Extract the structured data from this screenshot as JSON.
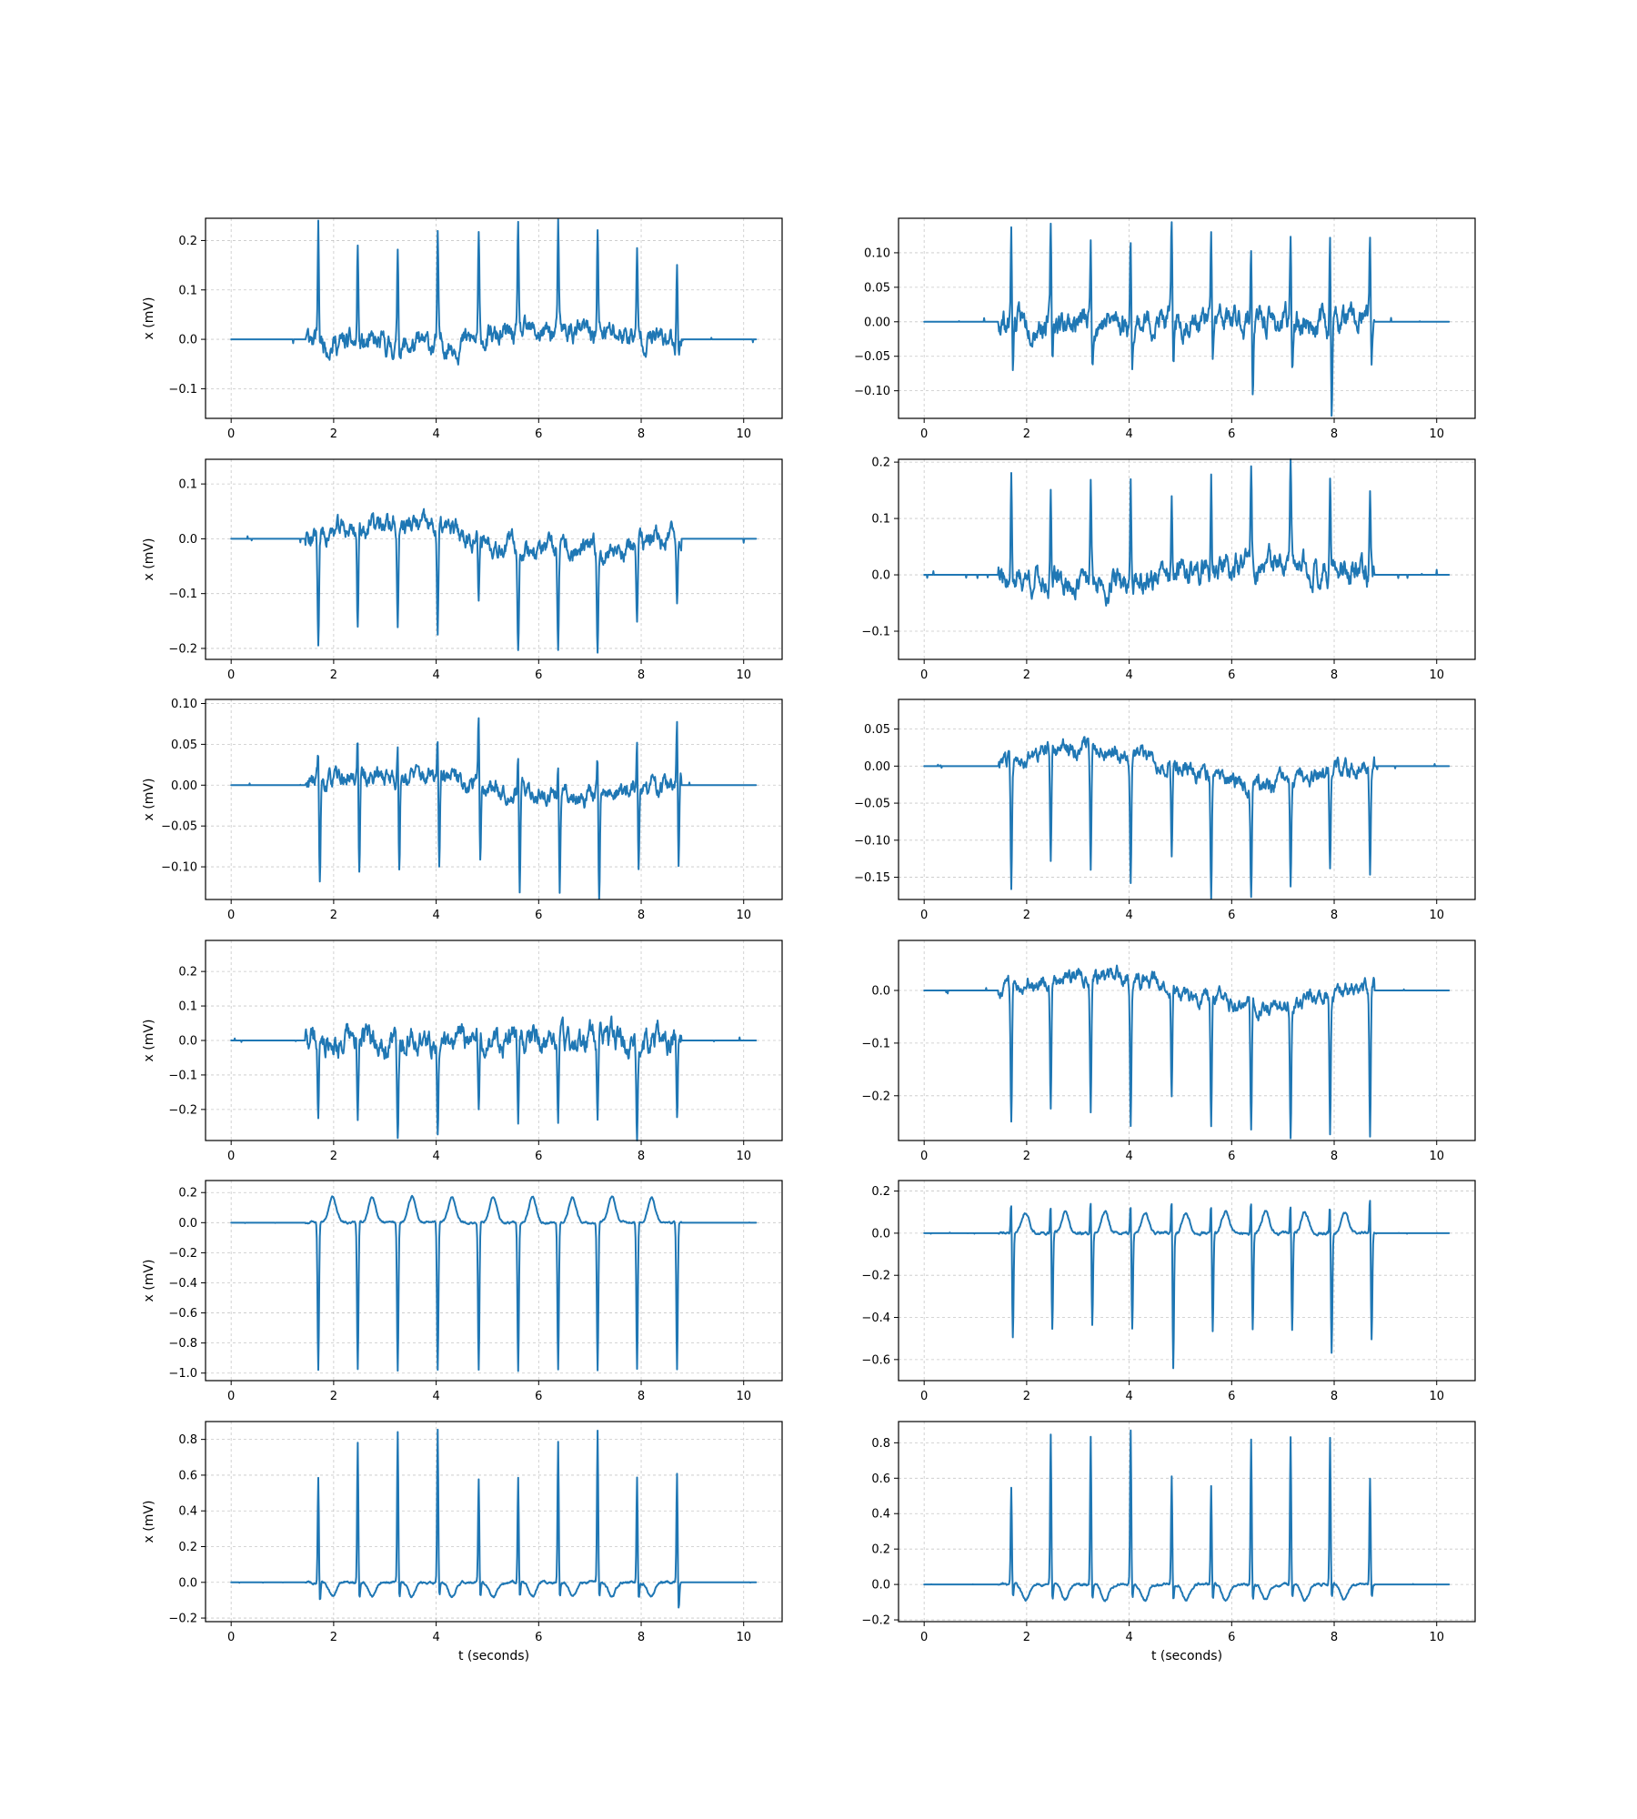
{
  "figure": {
    "layout": "6 rows x 2 columns of ECG line plots",
    "line_color": "#1f77b4",
    "background": "#ffffff"
  },
  "chart_data": [
    {
      "type": "line",
      "panel": "r1c1",
      "xlabel": "",
      "ylabel": "x (mV)",
      "xlim": [
        -0.5,
        10.75
      ],
      "ylim": [
        -0.16,
        0.245
      ],
      "xticks": [
        0,
        2,
        4,
        6,
        8,
        10
      ],
      "xtick_labels": [
        "0",
        "2",
        "4",
        "6",
        "8",
        "10"
      ],
      "yticks": [
        -0.1,
        0.0,
        0.1,
        0.2
      ],
      "ytick_labels": [
        "−0.1",
        "0.0",
        "0.1",
        "0.2"
      ],
      "grid": true,
      "x_range": [
        0,
        10.24
      ],
      "active_start": 1.45,
      "active_end": 8.78,
      "peak_times": [
        1.7,
        2.47,
        3.25,
        4.03,
        4.83,
        5.6,
        6.38,
        7.15,
        7.92,
        8.7
      ],
      "peak_values": [
        0.23,
        0.205,
        0.205,
        0.21,
        0.2,
        0.215,
        0.205,
        0.205,
        0.16,
        0.17
      ],
      "noise": 0.03,
      "drift": -0.015,
      "seed": 11
    },
    {
      "type": "line",
      "panel": "r1c2",
      "xlabel": "",
      "ylabel": "",
      "xlim": [
        -0.5,
        10.75
      ],
      "ylim": [
        -0.14,
        0.15
      ],
      "xticks": [
        0,
        2,
        4,
        6,
        8,
        10
      ],
      "xtick_labels": [
        "0",
        "2",
        "4",
        "6",
        "8",
        "10"
      ],
      "yticks": [
        -0.1,
        -0.05,
        0.0,
        0.05,
        0.1
      ],
      "ytick_labels": [
        "−0.10",
        "−0.05",
        "0.00",
        "0.05",
        "0.10"
      ],
      "grid": true,
      "x_range": [
        0,
        10.24
      ],
      "active_start": 1.45,
      "active_end": 8.78,
      "peak_times": [
        1.7,
        2.47,
        3.25,
        4.03,
        4.83,
        5.6,
        6.38,
        7.15,
        7.92,
        8.7
      ],
      "peak_values": [
        0.135,
        0.13,
        0.12,
        0.12,
        0.13,
        0.135,
        0.13,
        0.13,
        0.125,
        0.135
      ],
      "trough_values": [
        -0.06,
        -0.06,
        -0.055,
        -0.06,
        -0.065,
        -0.07,
        -0.1,
        -0.07,
        -0.13,
        -0.065
      ],
      "noise": 0.025,
      "drift": 0,
      "seed": 23
    },
    {
      "type": "line",
      "panel": "r2c1",
      "xlabel": "",
      "ylabel": "x (mV)",
      "xlim": [
        -0.5,
        10.75
      ],
      "ylim": [
        -0.22,
        0.145
      ],
      "xticks": [
        0,
        2,
        4,
        6,
        8,
        10
      ],
      "xtick_labels": [
        "0",
        "2",
        "4",
        "6",
        "8",
        "10"
      ],
      "yticks": [
        -0.2,
        -0.1,
        0.0,
        0.1
      ],
      "ytick_labels": [
        "−0.2",
        "−0.1",
        "0.0",
        "0.1"
      ],
      "grid": true,
      "x_range": [
        0,
        10.24
      ],
      "active_start": 1.45,
      "active_end": 8.78,
      "peak_times": [
        1.7,
        2.47,
        3.25,
        4.03,
        4.83,
        5.6,
        6.38,
        7.15,
        7.92,
        8.7
      ],
      "trough_values": [
        -0.2,
        -0.185,
        -0.19,
        -0.195,
        -0.135,
        -0.19,
        -0.185,
        -0.19,
        -0.15,
        -0.11
      ],
      "noise": 0.025,
      "drift": 0.025,
      "seed": 37
    },
    {
      "type": "line",
      "panel": "r2c2",
      "xlabel": "",
      "ylabel": "",
      "xlim": [
        -0.5,
        10.75
      ],
      "ylim": [
        -0.15,
        0.205
      ],
      "xticks": [
        0,
        2,
        4,
        6,
        8,
        10
      ],
      "xtick_labels": [
        "0",
        "2",
        "4",
        "6",
        "8",
        "10"
      ],
      "yticks": [
        -0.1,
        0.0,
        0.1,
        0.2
      ],
      "ytick_labels": [
        "−0.1",
        "0.0",
        "0.1",
        "0.2"
      ],
      "grid": true,
      "x_range": [
        0,
        10.24
      ],
      "active_start": 1.45,
      "active_end": 8.78,
      "peak_times": [
        1.7,
        2.47,
        3.25,
        4.03,
        4.83,
        5.6,
        6.38,
        7.15,
        7.92,
        8.7
      ],
      "peak_values": [
        0.19,
        0.17,
        0.17,
        0.18,
        0.15,
        0.18,
        0.17,
        0.18,
        0.16,
        0.135
      ],
      "noise": 0.03,
      "drift": -0.015,
      "seed": 41
    },
    {
      "type": "line",
      "panel": "r3c1",
      "xlabel": "",
      "ylabel": "x (mV)",
      "xlim": [
        -0.5,
        10.75
      ],
      "ylim": [
        -0.14,
        0.105
      ],
      "xticks": [
        0,
        2,
        4,
        6,
        8,
        10
      ],
      "xtick_labels": [
        "0",
        "2",
        "4",
        "6",
        "8",
        "10"
      ],
      "yticks": [
        -0.1,
        -0.05,
        0.0,
        0.05,
        0.1
      ],
      "ytick_labels": [
        "−0.10",
        "−0.05",
        "0.00",
        "0.05",
        "0.10"
      ],
      "grid": true,
      "x_range": [
        0,
        10.24
      ],
      "active_start": 1.45,
      "active_end": 8.78,
      "peak_times": [
        1.7,
        2.47,
        3.25,
        4.03,
        4.83,
        5.6,
        6.38,
        7.15,
        7.92,
        8.7
      ],
      "peak_values": [
        0.05,
        0.06,
        0.05,
        0.05,
        0.09,
        0.055,
        0.055,
        0.05,
        0.06,
        0.08
      ],
      "trough_values": [
        -0.125,
        -0.12,
        -0.125,
        -0.125,
        -0.09,
        -0.12,
        -0.12,
        -0.125,
        -0.1,
        -0.1
      ],
      "noise": 0.015,
      "drift": 0.012,
      "seed": 53
    },
    {
      "type": "line",
      "panel": "r3c2",
      "xlabel": "",
      "ylabel": "",
      "xlim": [
        -0.5,
        10.75
      ],
      "ylim": [
        -0.18,
        0.09
      ],
      "xticks": [
        0,
        2,
        4,
        6,
        8,
        10
      ],
      "xtick_labels": [
        "0",
        "2",
        "4",
        "6",
        "8",
        "10"
      ],
      "yticks": [
        -0.15,
        -0.1,
        -0.05,
        0.0,
        0.05
      ],
      "ytick_labels": [
        "−0.15",
        "−0.10",
        "−0.05",
        "0.00",
        "0.05"
      ],
      "grid": true,
      "x_range": [
        0,
        10.24
      ],
      "active_start": 1.45,
      "active_end": 8.78,
      "peak_times": [
        1.7,
        2.47,
        3.25,
        4.03,
        4.83,
        5.6,
        6.38,
        7.15,
        7.92,
        8.7
      ],
      "trough_values": [
        -0.17,
        -0.15,
        -0.15,
        -0.155,
        -0.13,
        -0.165,
        -0.15,
        -0.14,
        -0.14,
        -0.145
      ],
      "noise": 0.015,
      "drift": 0.025,
      "seed": 67
    },
    {
      "type": "line",
      "panel": "r4c1",
      "xlabel": "",
      "ylabel": "x (mV)",
      "xlim": [
        -0.5,
        10.75
      ],
      "ylim": [
        -0.29,
        0.29
      ],
      "xticks": [
        0,
        2,
        4,
        6,
        8,
        10
      ],
      "xtick_labels": [
        "0",
        "2",
        "4",
        "6",
        "8",
        "10"
      ],
      "yticks": [
        -0.2,
        -0.1,
        0.0,
        0.1,
        0.2
      ],
      "ytick_labels": [
        "−0.2",
        "−0.1",
        "0.0",
        "0.1",
        "0.2"
      ],
      "grid": true,
      "x_range": [
        0,
        10.24
      ],
      "active_start": 1.45,
      "active_end": 8.78,
      "peak_times": [
        1.7,
        2.47,
        3.25,
        4.03,
        4.83,
        5.6,
        6.38,
        7.15,
        7.92,
        8.7
      ],
      "trough_values": [
        -0.26,
        -0.24,
        -0.25,
        -0.25,
        -0.22,
        -0.25,
        -0.24,
        -0.25,
        -0.25,
        -0.26
      ],
      "noise": 0.05,
      "drift": 0,
      "seed": 79
    },
    {
      "type": "line",
      "panel": "r4c2",
      "xlabel": "",
      "ylabel": "",
      "xlim": [
        -0.5,
        10.75
      ],
      "ylim": [
        -0.285,
        0.095
      ],
      "xticks": [
        0,
        2,
        4,
        6,
        8,
        10
      ],
      "xtick_labels": [
        "0",
        "2",
        "4",
        "6",
        "8",
        "10"
      ],
      "yticks": [
        -0.2,
        -0.1,
        0.0
      ],
      "ytick_labels": [
        "−0.2",
        "−0.1",
        "0.0"
      ],
      "grid": true,
      "x_range": [
        0,
        10.24
      ],
      "active_start": 1.45,
      "active_end": 8.78,
      "peak_times": [
        1.7,
        2.47,
        3.25,
        4.03,
        4.83,
        5.6,
        6.38,
        7.15,
        7.92,
        8.7
      ],
      "trough_values": [
        -0.26,
        -0.245,
        -0.25,
        -0.26,
        -0.2,
        -0.255,
        -0.245,
        -0.255,
        -0.265,
        -0.27
      ],
      "noise": 0.02,
      "drift": 0.03,
      "seed": 83
    },
    {
      "type": "line",
      "panel": "r5c1",
      "xlabel": "",
      "ylabel": "x (mV)",
      "xlim": [
        -0.5,
        10.75
      ],
      "ylim": [
        -1.05,
        0.28
      ],
      "xticks": [
        0,
        2,
        4,
        6,
        8,
        10
      ],
      "xtick_labels": [
        "0",
        "2",
        "4",
        "6",
        "8",
        "10"
      ],
      "yticks": [
        -1.0,
        -0.8,
        -0.6,
        -0.4,
        -0.2,
        0.0,
        0.2
      ],
      "ytick_labels": [
        "−1.0",
        "−0.8",
        "−0.6",
        "−0.4",
        "−0.2",
        "0.0",
        "0.2"
      ],
      "grid": true,
      "x_range": [
        0,
        10.24
      ],
      "active_start": 1.45,
      "active_end": 8.78,
      "peak_times": [
        1.7,
        2.47,
        3.25,
        4.03,
        4.83,
        5.6,
        6.38,
        7.15,
        7.92,
        8.7
      ],
      "trough_values": [
        -0.98,
        -0.98,
        -0.98,
        -0.98,
        -0.98,
        -0.98,
        -0.98,
        -0.98,
        -0.98,
        -0.98
      ],
      "twave": 0.17,
      "noise": 0.01,
      "drift": 0,
      "seed": 97
    },
    {
      "type": "line",
      "panel": "r5c2",
      "xlabel": "",
      "ylabel": "",
      "xlim": [
        -0.5,
        10.75
      ],
      "ylim": [
        -0.7,
        0.25
      ],
      "xticks": [
        0,
        2,
        4,
        6,
        8,
        10
      ],
      "xtick_labels": [
        "0",
        "2",
        "4",
        "6",
        "8",
        "10"
      ],
      "yticks": [
        -0.6,
        -0.4,
        -0.2,
        0.0,
        0.2
      ],
      "ytick_labels": [
        "−0.6",
        "−0.4",
        "−0.2",
        "0.0",
        "0.2"
      ],
      "grid": true,
      "x_range": [
        0,
        10.24
      ],
      "active_start": 1.45,
      "active_end": 8.78,
      "peak_times": [
        1.7,
        2.47,
        3.25,
        4.03,
        4.83,
        5.6,
        6.38,
        7.15,
        7.92,
        8.7
      ],
      "peak_values": [
        0.18,
        0.17,
        0.18,
        0.17,
        0.2,
        0.17,
        0.18,
        0.17,
        0.17,
        0.21
      ],
      "trough_values": [
        -0.5,
        -0.46,
        -0.45,
        -0.46,
        -0.65,
        -0.47,
        -0.46,
        -0.46,
        -0.58,
        -0.52
      ],
      "twave": 0.1,
      "noise": 0.01,
      "drift": 0,
      "seed": 101
    },
    {
      "type": "line",
      "panel": "r6c1",
      "xlabel": "t (seconds)",
      "ylabel": "x (mV)",
      "xlim": [
        -0.5,
        10.75
      ],
      "ylim": [
        -0.22,
        0.9
      ],
      "xticks": [
        0,
        2,
        4,
        6,
        8,
        10
      ],
      "xtick_labels": [
        "0",
        "2",
        "4",
        "6",
        "8",
        "10"
      ],
      "yticks": [
        -0.2,
        0.0,
        0.2,
        0.4,
        0.6,
        0.8
      ],
      "ytick_labels": [
        "−0.2",
        "0.0",
        "0.2",
        "0.4",
        "0.6",
        "0.8"
      ],
      "grid": true,
      "x_range": [
        0,
        10.24
      ],
      "active_start": 1.45,
      "active_end": 8.78,
      "peak_times": [
        1.7,
        2.47,
        3.25,
        4.03,
        4.83,
        5.6,
        6.38,
        7.15,
        7.92,
        8.7
      ],
      "peak_values": [
        0.6,
        0.8,
        0.85,
        0.86,
        0.58,
        0.6,
        0.8,
        0.85,
        0.6,
        0.62
      ],
      "trough_values": [
        -0.12,
        -0.1,
        -0.1,
        -0.1,
        -0.1,
        -0.1,
        -0.1,
        -0.1,
        -0.1,
        -0.17
      ],
      "twave": -0.08,
      "noise": 0.01,
      "drift": 0,
      "seed": 113
    },
    {
      "type": "line",
      "panel": "r6c2",
      "xlabel": "t (seconds)",
      "ylabel": "",
      "xlim": [
        -0.5,
        10.75
      ],
      "ylim": [
        -0.21,
        0.92
      ],
      "xticks": [
        0,
        2,
        4,
        6,
        8,
        10
      ],
      "xtick_labels": [
        "0",
        "2",
        "4",
        "6",
        "8",
        "10"
      ],
      "yticks": [
        -0.2,
        0.0,
        0.2,
        0.4,
        0.6,
        0.8
      ],
      "ytick_labels": [
        "−0.2",
        "0.0",
        "0.2",
        "0.4",
        "0.6",
        "0.8"
      ],
      "grid": true,
      "x_range": [
        0,
        10.24
      ],
      "active_start": 1.45,
      "active_end": 8.78,
      "peak_times": [
        1.7,
        2.47,
        3.25,
        4.03,
        4.83,
        5.6,
        6.38,
        7.15,
        7.92,
        8.7
      ],
      "peak_values": [
        0.55,
        0.86,
        0.85,
        0.88,
        0.62,
        0.57,
        0.83,
        0.84,
        0.83,
        0.61
      ],
      "trough_values": [
        -0.08,
        -0.1,
        -0.1,
        -0.1,
        -0.1,
        -0.1,
        -0.1,
        -0.1,
        -0.1,
        -0.08
      ],
      "twave": -0.09,
      "noise": 0.01,
      "drift": 0,
      "seed": 127
    }
  ]
}
